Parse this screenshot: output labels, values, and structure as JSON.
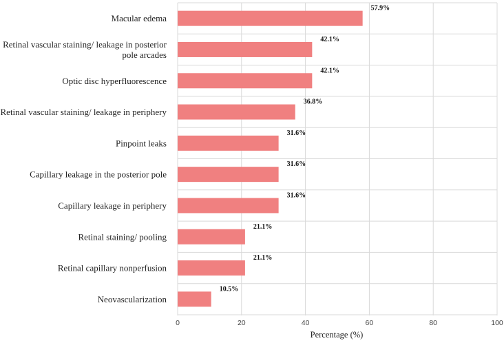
{
  "chart_data": {
    "type": "bar",
    "orientation": "horizontal",
    "categories": [
      [
        "Macular edema"
      ],
      [
        "Retinal vascular staining/ leakage in posterior",
        "pole arcades"
      ],
      [
        "Optic disc hyperfluorescence"
      ],
      [
        "Retinal vascular staining/ leakage in periphery"
      ],
      [
        "Pinpoint leaks"
      ],
      [
        "Capillary leakage in the posterior pole"
      ],
      [
        "Capillary leakage in periphery"
      ],
      [
        "Retinal staining/ pooling"
      ],
      [
        "Retinal capillary nonperfusion"
      ],
      [
        "Neovascularization"
      ]
    ],
    "values": [
      57.9,
      42.1,
      42.1,
      36.8,
      31.6,
      31.6,
      31.6,
      21.1,
      21.1,
      10.5
    ],
    "value_labels": [
      "57.9%",
      "42.1%",
      "42.1%",
      "36.8%",
      "31.6%",
      "31.6%",
      "31.6%",
      "21.1%",
      "21.1%",
      "10.5%"
    ],
    "xlabel": "Percentage (%)",
    "ylabel": "",
    "xlim": [
      0,
      100
    ],
    "xticks": [
      0,
      20,
      40,
      60,
      80,
      100
    ],
    "grid": true,
    "bar_color": "#f08080",
    "grid_color": "#d9d9d9"
  }
}
